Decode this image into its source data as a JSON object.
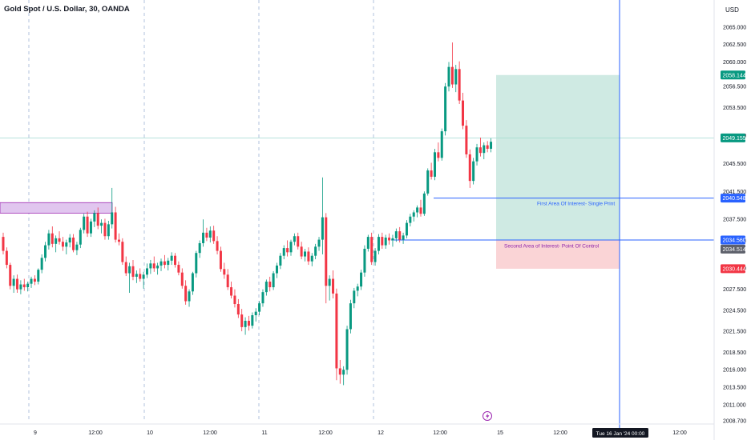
{
  "header": {
    "title": "Gold Spot / U.S. Dollar, 30, OANDA",
    "currency": "USD"
  },
  "colors": {
    "up": "#089981",
    "down": "#f23645",
    "blue_line": "#2962ff",
    "profit_zone": "#cfeae3",
    "loss_zone": "#fad4d6",
    "single_print_box": "#e1c6ef",
    "single_print_border": "#9c27b0",
    "current_price_line": "#9fd9cf",
    "grid": "#d8dce6"
  },
  "chart_data": {
    "type": "candlestick",
    "title": "Gold Spot / U.S. Dollar, 30, OANDA",
    "ylim": [
      2008.7,
      2067.5
    ],
    "y_ticks": [
      "2065.000",
      "2062.500",
      "2060.000",
      "2056.500",
      "2053.500",
      "2049.500",
      "2045.500",
      "2041.500",
      "2037.500",
      "2034.500",
      "2030.500",
      "2027.500",
      "2024.500",
      "2021.500",
      "2018.500",
      "2016.000",
      "2013.500",
      "2011.000",
      "2008.700"
    ],
    "x_ticks": [
      "9",
      "12:00",
      "10",
      "12:00",
      "11",
      "12:00",
      "12",
      "12:00",
      "15",
      "12:00",
      "12:00"
    ],
    "price_labels": [
      {
        "text": "2058.144",
        "price": 2058.144,
        "kind": "up"
      },
      {
        "text": "2049.155",
        "price": 2049.155,
        "kind": "up"
      },
      {
        "text": "2040.548",
        "price": 2040.548,
        "kind": "blue"
      },
      {
        "text": "2034.560",
        "price": 2034.56,
        "kind": "blue"
      },
      {
        "text": "2034.514",
        "price": 2034.514,
        "kind": "dark"
      },
      {
        "text": "2030.444",
        "price": 2030.444,
        "kind": "down"
      }
    ],
    "crosshair_label": "Tue 16 Jan '24   00:00",
    "annotations": [
      {
        "text": "First Area Of Interest- Single Print",
        "price": 2039.9
      },
      {
        "text": "Second Area of Interest- Point Of Control",
        "price": 2033.8
      }
    ],
    "zones": {
      "profit": {
        "top": 2058.144,
        "bottom": 2034.514
      },
      "loss": {
        "top": 2034.514,
        "bottom": 2030.444
      },
      "single_print_box": {
        "top": 2039.9,
        "bottom": 2038.4
      },
      "current_price": 2049.155,
      "level_1": 2040.548,
      "level_2": 2034.56
    },
    "candles": [
      [
        2035,
        2035.6,
        2032.5,
        2033
      ],
      [
        2033,
        2033.5,
        2030.5,
        2031
      ],
      [
        2031,
        2031.3,
        2027.5,
        2028
      ],
      [
        2028,
        2029.5,
        2027,
        2029
      ],
      [
        2029,
        2029.6,
        2027,
        2027.5
      ],
      [
        2027.5,
        2028.8,
        2026.8,
        2028.2
      ],
      [
        2028.2,
        2029,
        2027.3,
        2027.8
      ],
      [
        2027.8,
        2028.6,
        2027.2,
        2028.3
      ],
      [
        2028.3,
        2029.3,
        2027.7,
        2029
      ],
      [
        2029,
        2029.5,
        2028.1,
        2028.6
      ],
      [
        2028.6,
        2030.5,
        2028.2,
        2030.3
      ],
      [
        2030.3,
        2032.5,
        2029.8,
        2032
      ],
      [
        2032,
        2034.3,
        2031.5,
        2033.8
      ],
      [
        2033.8,
        2036,
        2033.2,
        2035.5
      ],
      [
        2035.5,
        2036.5,
        2033.5,
        2034
      ],
      [
        2034,
        2035.2,
        2032.8,
        2034.8
      ],
      [
        2034.8,
        2035.8,
        2033.9,
        2034.3
      ],
      [
        2034.3,
        2035,
        2033,
        2033.6
      ],
      [
        2033.6,
        2034.6,
        2032.5,
        2034.2
      ],
      [
        2034.2,
        2035.4,
        2033.5,
        2034.9
      ],
      [
        2034.9,
        2035.4,
        2032.8,
        2033.1
      ],
      [
        2033.1,
        2034.3,
        2032.4,
        2033.9
      ],
      [
        2033.9,
        2036.3,
        2033.4,
        2036
      ],
      [
        2036,
        2038.3,
        2035.5,
        2037.9
      ],
      [
        2037.9,
        2038.6,
        2035,
        2035.5
      ],
      [
        2035.5,
        2037.6,
        2035,
        2037.2
      ],
      [
        2037.2,
        2038.8,
        2036.4,
        2038.4
      ],
      [
        2038.4,
        2039.2,
        2036.1,
        2036.6
      ],
      [
        2036.6,
        2037.5,
        2035.5,
        2037
      ],
      [
        2037,
        2037.6,
        2034.6,
        2035.1
      ],
      [
        2035.1,
        2037.3,
        2034.6,
        2036.8
      ],
      [
        2036.8,
        2042,
        2036.2,
        2038.5
      ],
      [
        2038.5,
        2039.3,
        2034.2,
        2034.6
      ],
      [
        2034.6,
        2035.5,
        2033.8,
        2034.3
      ],
      [
        2034.3,
        2034.8,
        2031,
        2031.4
      ],
      [
        2031.4,
        2032.2,
        2029.4,
        2029.8
      ],
      [
        2029.8,
        2031.3,
        2027,
        2030.8
      ],
      [
        2030.8,
        2031.7,
        2028.8,
        2029.3
      ],
      [
        2029.3,
        2030.2,
        2028.4,
        2029.7
      ],
      [
        2029.7,
        2030.5,
        2028.6,
        2029
      ],
      [
        2029,
        2030,
        2027.6,
        2029.6
      ],
      [
        2029.6,
        2031.2,
        2029.1,
        2030.5
      ],
      [
        2030.5,
        2031.7,
        2029.7,
        2031.2
      ],
      [
        2031.2,
        2032.2,
        2030,
        2030.5
      ],
      [
        2030.5,
        2031.3,
        2029.6,
        2030.9
      ],
      [
        2030.9,
        2031.9,
        2030.1,
        2031.5
      ],
      [
        2031.5,
        2032.4,
        2030.5,
        2031
      ],
      [
        2031,
        2032,
        2030.2,
        2031.6
      ],
      [
        2031.6,
        2032.8,
        2031,
        2032.3
      ],
      [
        2032.3,
        2032.7,
        2030.6,
        2031
      ],
      [
        2031,
        2031.5,
        2029.5,
        2029.9
      ],
      [
        2029.9,
        2030.5,
        2027.6,
        2028
      ],
      [
        2028,
        2028.8,
        2025.3,
        2025.8
      ],
      [
        2025.8,
        2027.5,
        2025,
        2027.2
      ],
      [
        2027.2,
        2030,
        2026.7,
        2029.8
      ],
      [
        2029.8,
        2033,
        2029.2,
        2032.7
      ],
      [
        2032.7,
        2034.5,
        2032,
        2034.1
      ],
      [
        2034.1,
        2037.5,
        2033.6,
        2035.6
      ],
      [
        2035.6,
        2036.3,
        2034.4,
        2034.9
      ],
      [
        2034.9,
        2036.5,
        2034.2,
        2035.9
      ],
      [
        2035.9,
        2036.6,
        2034,
        2034.4
      ],
      [
        2034.4,
        2035.1,
        2032.5,
        2033
      ],
      [
        2033,
        2033.6,
        2030,
        2030.4
      ],
      [
        2030.4,
        2031.3,
        2029,
        2029.6
      ],
      [
        2029.6,
        2030.4,
        2027.4,
        2027.8
      ],
      [
        2027.8,
        2028.6,
        2026.2,
        2026.6
      ],
      [
        2026.6,
        2027.5,
        2024.9,
        2025.4
      ],
      [
        2025.4,
        2026.1,
        2023.4,
        2023.9
      ],
      [
        2023.9,
        2024.7,
        2021.5,
        2022.1
      ],
      [
        2022.1,
        2023.5,
        2021,
        2023
      ],
      [
        2023,
        2023.7,
        2021.6,
        2022.3
      ],
      [
        2022.3,
        2024.2,
        2021.9,
        2023.8
      ],
      [
        2023.8,
        2024.8,
        2022.9,
        2024.3
      ],
      [
        2024.3,
        2025.8,
        2023.8,
        2025.5
      ],
      [
        2025.5,
        2027.5,
        2025,
        2027.1
      ],
      [
        2027.1,
        2028.9,
        2026.6,
        2028.6
      ],
      [
        2028.6,
        2029.3,
        2027.2,
        2027.8
      ],
      [
        2027.8,
        2030.1,
        2027.4,
        2029.8
      ],
      [
        2029.8,
        2031.3,
        2029.1,
        2030.9
      ],
      [
        2030.9,
        2032.7,
        2030.4,
        2032.3
      ],
      [
        2032.3,
        2033.8,
        2031.8,
        2033.4
      ],
      [
        2033.4,
        2034.5,
        2032.2,
        2032.8
      ],
      [
        2032.8,
        2034.6,
        2032.3,
        2034.3
      ],
      [
        2034.3,
        2035.5,
        2033.8,
        2035.1
      ],
      [
        2035.1,
        2035.6,
        2033.2,
        2033.6
      ],
      [
        2033.6,
        2034.3,
        2031.8,
        2032.2
      ],
      [
        2032.2,
        2033.3,
        2031.5,
        2032.9
      ],
      [
        2032.9,
        2033.5,
        2031,
        2031.5
      ],
      [
        2031.5,
        2032.7,
        2030.8,
        2032.3
      ],
      [
        2032.3,
        2034,
        2031.8,
        2033.6
      ],
      [
        2033.6,
        2035,
        2033,
        2034.6
      ],
      [
        2034.6,
        2043.5,
        2032.5,
        2037.8
      ],
      [
        2037.8,
        2038.4,
        2025.5,
        2028
      ],
      [
        2028,
        2029.5,
        2025.9,
        2029
      ],
      [
        2029,
        2030.2,
        2026.2,
        2026.9
      ],
      [
        2026.9,
        2027.6,
        2014.5,
        2016.2
      ],
      [
        2016.2,
        2017.4,
        2014,
        2015.3
      ],
      [
        2015.3,
        2016.5,
        2013.8,
        2016
      ],
      [
        2016,
        2022.3,
        2015.3,
        2021.8
      ],
      [
        2021.8,
        2026,
        2021.2,
        2025.5
      ],
      [
        2025.5,
        2027.7,
        2024.8,
        2027.3
      ],
      [
        2027.3,
        2028.3,
        2026.5,
        2027.9
      ],
      [
        2027.9,
        2030.3,
        2027.4,
        2029.9
      ],
      [
        2029.9,
        2033.8,
        2029.3,
        2033.3
      ],
      [
        2033.3,
        2035.3,
        2032.9,
        2035
      ],
      [
        2035,
        2035.6,
        2031,
        2031.4
      ],
      [
        2031.4,
        2033.4,
        2030.9,
        2033
      ],
      [
        2033,
        2035.4,
        2032.5,
        2035
      ],
      [
        2035,
        2035.6,
        2033.3,
        2033.8
      ],
      [
        2033.8,
        2035.3,
        2033.3,
        2034.9
      ],
      [
        2034.9,
        2035.5,
        2033.9,
        2034.5
      ],
      [
        2034.5,
        2035.3,
        2033.6,
        2034.8
      ],
      [
        2034.8,
        2036.2,
        2034.3,
        2035.8
      ],
      [
        2035.8,
        2036.4,
        2034.2,
        2034.6
      ],
      [
        2034.6,
        2035.6,
        2034,
        2035.2
      ],
      [
        2035.2,
        2037.4,
        2034.8,
        2037
      ],
      [
        2037,
        2038.3,
        2036.5,
        2037.9
      ],
      [
        2037.9,
        2038.8,
        2037.2,
        2038.5
      ],
      [
        2038.5,
        2039.5,
        2037.8,
        2039.2
      ],
      [
        2039.2,
        2040.3,
        2037.9,
        2038.3
      ],
      [
        2038.3,
        2041.5,
        2038,
        2041.2
      ],
      [
        2041.2,
        2044.8,
        2040.9,
        2044.5
      ],
      [
        2044.5,
        2045.6,
        2043.2,
        2043.6
      ],
      [
        2043.6,
        2047.6,
        2043.1,
        2047.1
      ],
      [
        2047.1,
        2048.5,
        2045.8,
        2046.3
      ],
      [
        2046.3,
        2050.5,
        2045.9,
        2050.1
      ],
      [
        2050.1,
        2057,
        2049.5,
        2056.5
      ],
      [
        2056.5,
        2060,
        2055.8,
        2059.3
      ],
      [
        2059.3,
        2062.8,
        2056.3,
        2056.8
      ],
      [
        2056.8,
        2059.6,
        2055.7,
        2059
      ],
      [
        2059,
        2060.1,
        2054,
        2054.5
      ],
      [
        2054.5,
        2055.6,
        2050.4,
        2050.9
      ],
      [
        2050.9,
        2051.7,
        2046.3,
        2046.8
      ],
      [
        2046.8,
        2047.5,
        2042,
        2043
      ],
      [
        2043,
        2046.3,
        2042.5,
        2045.8
      ],
      [
        2045.8,
        2048.3,
        2045.2,
        2047.8
      ],
      [
        2047.8,
        2049.2,
        2046.5,
        2047
      ],
      [
        2047,
        2048.5,
        2046.1,
        2048.1
      ],
      [
        2048.1,
        2048.7,
        2047.1,
        2047.6
      ],
      [
        2047.6,
        2049.1,
        2047.1,
        2048.6
      ]
    ]
  }
}
